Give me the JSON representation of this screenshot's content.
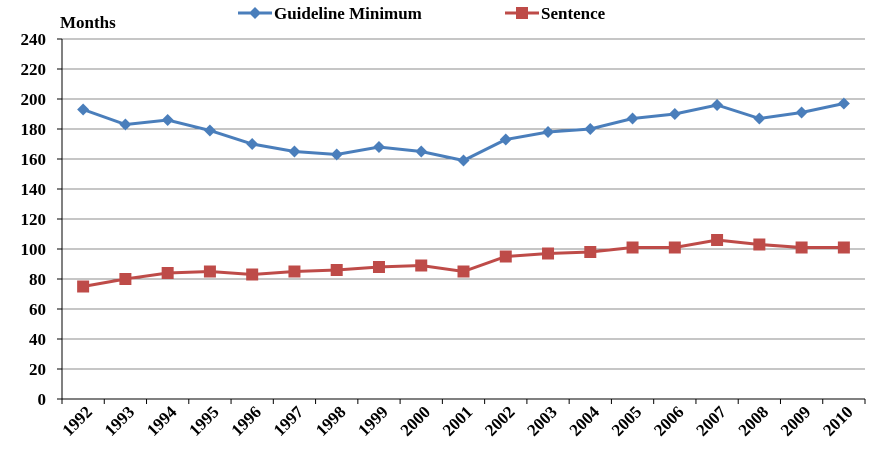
{
  "chart_data": {
    "type": "line",
    "y_label": "Months",
    "categories": [
      "1992",
      "1993",
      "1994",
      "1995",
      "1996",
      "1997",
      "1998",
      "1999",
      "2000",
      "2001",
      "2002",
      "2003",
      "2004",
      "2005",
      "2006",
      "2007",
      "2008",
      "2009",
      "2010"
    ],
    "series": [
      {
        "name": "Guideline Minimum",
        "color": "#4a7ebb",
        "marker": "diamond",
        "values": [
          193,
          183,
          186,
          179,
          170,
          165,
          163,
          168,
          165,
          159,
          173,
          178,
          180,
          187,
          190,
          196,
          187,
          191,
          197
        ]
      },
      {
        "name": "Sentence",
        "color": "#be4b48",
        "marker": "square",
        "values": [
          75,
          80,
          84,
          85,
          83,
          85,
          86,
          88,
          89,
          85,
          95,
          97,
          98,
          101,
          101,
          106,
          103,
          101,
          101
        ]
      }
    ],
    "ylim": [
      0,
      240
    ],
    "yticks": [
      0,
      20,
      40,
      60,
      80,
      100,
      120,
      140,
      160,
      180,
      200,
      220,
      240
    ],
    "grid": true,
    "legend": "top"
  }
}
